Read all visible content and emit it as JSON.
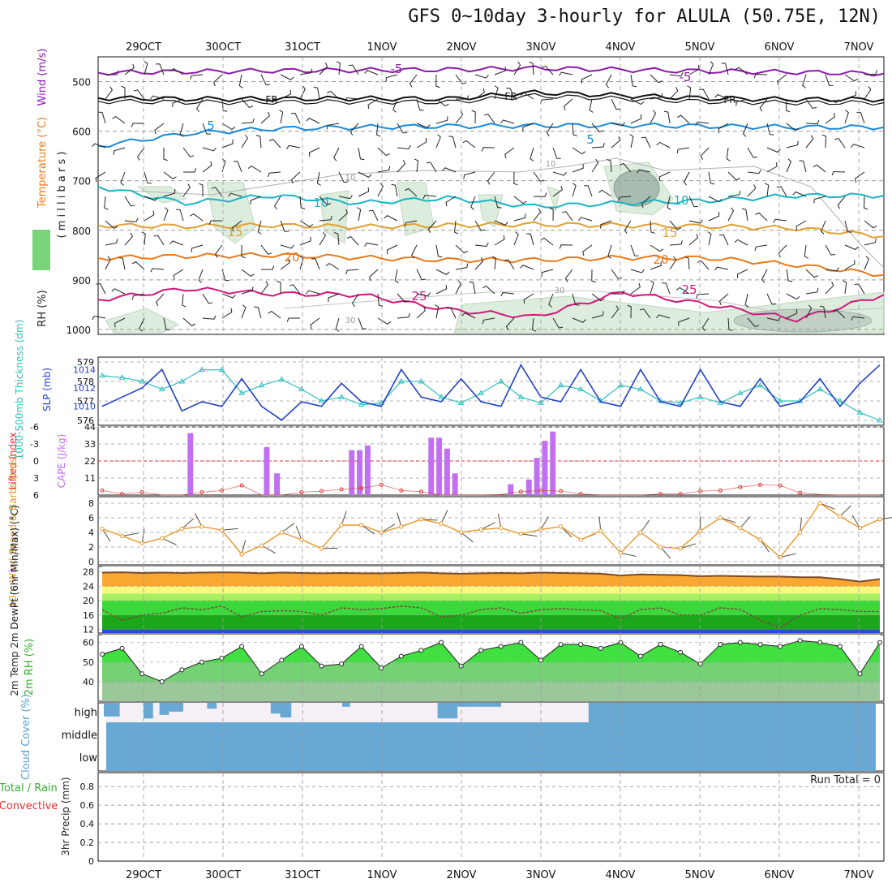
{
  "title": "GFS 0~10day 3-hourly for ALULA (50.75E, 12N)",
  "dates": [
    "29OCT",
    "30OCT",
    "31OCT",
    "1NOV",
    "2NOV",
    "3NOV",
    "4NOV",
    "5NOV",
    "6NOV",
    "7NOV"
  ],
  "colors": {
    "purple": "#8a1aa8",
    "black": "#111111",
    "blue": "#1a8ad8",
    "cyan": "#1ab4c4",
    "gold": "#e0a030",
    "orange": "#e87a1a",
    "magenta": "#d0187a",
    "slp": "#2040c8",
    "thick": "#30c0c0",
    "cape": "#c070f0",
    "li": "#e03030",
    "wind10": "#e8982a",
    "cloud": "#6aa8d4",
    "rhgreen": "#40e040"
  },
  "panels": {
    "upper": {
      "axis_label_wind": "Wind (m/s)",
      "axis_label_temp": "Temperature (°C)",
      "axis_label_rh": "RH (%)",
      "axis_label_mb": "( m i l l i b a r s )",
      "yticks": [
        "500",
        "600",
        "700",
        "800",
        "900",
        "1000"
      ],
      "ylim": [
        450,
        1010
      ],
      "isotherms": [
        {
          "name": "-5",
          "color": "#8a1aa8",
          "p": [
            482,
            480,
            478,
            477,
            476,
            473,
            476,
            479,
            481,
            484
          ]
        },
        {
          "name": "FR",
          "color": "#111111",
          "p": [
            533,
            535,
            535,
            534,
            535,
            522,
            528,
            534,
            536,
            536
          ]
        },
        {
          "name": "-5b",
          "color": "#1a8ad8",
          "p": [
            630,
            605,
            595,
            592,
            590,
            589,
            588,
            590,
            592,
            592
          ]
        },
        {
          "name": "10",
          "color": "#1ab4c4",
          "p": [
            712,
            745,
            730,
            745,
            735,
            752,
            745,
            740,
            730,
            730
          ]
        },
        {
          "name": "15",
          "color": "#e0a030",
          "p": [
            790,
            792,
            790,
            793,
            790,
            788,
            790,
            792,
            796,
            812
          ]
        },
        {
          "name": "20",
          "color": "#e87a1a",
          "p": [
            856,
            852,
            850,
            855,
            860,
            860,
            855,
            856,
            870,
            890
          ]
        },
        {
          "name": "25",
          "color": "#d0187a",
          "p": [
            940,
            918,
            928,
            930,
            960,
            975,
            925,
            950,
            980,
            930
          ]
        }
      ],
      "contour_labels": [
        "-5",
        "-5",
        "FR",
        "FR",
        "FR",
        "5",
        "5",
        "10",
        "10",
        "15",
        "15",
        "20",
        "20",
        "25",
        "25",
        "10",
        "10",
        "30",
        "30"
      ]
    },
    "slp": {
      "axis_label_thick": "1000-500mb Thickness (dm)",
      "axis_label_slp": "SLP (mb)",
      "yticks_left": [
        "576",
        "577",
        "578",
        "579"
      ],
      "yticks_right": [
        "1010",
        "1012",
        "1014"
      ],
      "slp_values": [
        1010,
        1011,
        1012,
        1014,
        1009.5,
        1010.5,
        1010,
        1013,
        1010,
        1008.5,
        1010.5,
        1010,
        1012.5,
        1010.5,
        1010,
        1014,
        1011,
        1010.5,
        1013,
        1010.5,
        1010,
        1014.5,
        1011,
        1010.5,
        1014,
        1010.5,
        1010,
        1014,
        1010.5,
        1010,
        1014,
        1010.5,
        1010,
        1013,
        1010,
        1010.5,
        1013,
        1010,
        1012.5,
        1014.5
      ],
      "thick_values": [
        578.3,
        578.2,
        578.0,
        577.6,
        578.0,
        578.6,
        578.6,
        577.4,
        577.8,
        578.1,
        577.6,
        577.0,
        577.2,
        576.8,
        576.9,
        578.0,
        578.0,
        577.2,
        576.9,
        577.4,
        578.0,
        577.2,
        576.9,
        577.8,
        577.6,
        577.0,
        577.8,
        577.6,
        577.0,
        576.9,
        577.2,
        576.9,
        577.4,
        577.8,
        577.0,
        577.0,
        577.6,
        577.0,
        576.4,
        576.0
      ]
    },
    "cape": {
      "axis_label_li": "Lifted Index",
      "axis_label_cape": "CAPE (J/kg)",
      "yticks_left": [
        "-6",
        "-3",
        "0",
        "3",
        "6"
      ],
      "yticks_right": [
        "11",
        "22",
        "33",
        "44"
      ],
      "cape_bars": [
        {
          "t": 1.09,
          "v": 40
        },
        {
          "t": 2.05,
          "v": 31
        },
        {
          "t": 2.18,
          "v": 14
        },
        {
          "t": 3.12,
          "v": 29
        },
        {
          "t": 3.22,
          "v": 29
        },
        {
          "t": 3.32,
          "v": 32
        },
        {
          "t": 4.12,
          "v": 37
        },
        {
          "t": 4.22,
          "v": 37
        },
        {
          "t": 4.32,
          "v": 30
        },
        {
          "t": 4.42,
          "v": 14
        },
        {
          "t": 5.12,
          "v": 7
        },
        {
          "t": 5.35,
          "v": 10
        },
        {
          "t": 5.45,
          "v": 24
        },
        {
          "t": 5.55,
          "v": 35
        },
        {
          "t": 5.65,
          "v": 41
        }
      ],
      "li_values": [
        5.2,
        5.8,
        5.5,
        6,
        6,
        5.5,
        5.2,
        4.3,
        6,
        6,
        5.5,
        5.3,
        5,
        4.8,
        4.2,
        5.2,
        5.4,
        6,
        6,
        6,
        5.9,
        5.4,
        5.2,
        5.3,
        5.8,
        6,
        6,
        6,
        5.8,
        5.8,
        5.3,
        5.2,
        4.6,
        4.2,
        4.3,
        5.6,
        5.9,
        6,
        6,
        6
      ]
    },
    "wind10": {
      "axis_label": "10m Wind Speed & Barbs (m/s)",
      "yticks": [
        "0",
        "2",
        "4",
        "6",
        "8"
      ],
      "speed": [
        4.5,
        3.5,
        2.5,
        3.2,
        4.5,
        4.8,
        4.3,
        1.0,
        2.2,
        4.0,
        3.0,
        1.8,
        5.0,
        5.0,
        4.0,
        4.8,
        5.8,
        5.2,
        4.0,
        4.4,
        4.6,
        3.8,
        4.4,
        4.8,
        3.0,
        4.2,
        1.2,
        4.0,
        2.0,
        1.8,
        4.2,
        6.0,
        4.6,
        3.0,
        0.6,
        4.0,
        8.0,
        6.2,
        4.6,
        5.8
      ]
    },
    "temp2m": {
      "axis_label": "2m Temp 2m DewPt (6hr Min/Max) (°C)",
      "yticks": [
        "12",
        "16",
        "20",
        "24",
        "28"
      ],
      "temp": [
        27.8,
        27.9,
        27.7,
        27.8,
        27.7,
        27.8,
        27.9,
        27.8,
        27.6,
        27.8,
        27.7,
        27.6,
        27.7,
        27.6,
        27.6,
        27.7,
        27.8,
        27.6,
        27.5,
        27.6,
        27.7,
        27.6,
        27.8,
        27.7,
        27.6,
        27.5,
        27.0,
        27.3,
        27.2,
        27.1,
        26.8,
        26.9,
        26.8,
        26.7,
        26.7,
        26.5,
        26.5,
        26.0,
        25.3,
        26.0
      ],
      "dew": [
        17.5,
        14.5,
        16.0,
        16.5,
        18.0,
        17.5,
        18.5,
        15.5,
        17.0,
        17.2,
        17.0,
        16.0,
        18.0,
        17.5,
        17.8,
        18.5,
        18.0,
        15.5,
        16.0,
        17.5,
        18.0,
        16.5,
        17.5,
        17.8,
        17.5,
        17.2,
        15.0,
        17.5,
        18.0,
        16.0,
        16.0,
        18.0,
        17.6,
        14.5,
        12.5,
        16.0,
        17.8,
        17.5,
        17.0,
        17.0
      ]
    },
    "rh2m": {
      "axis_label": "2m RH (%)",
      "yticks": [
        "40",
        "50",
        "60"
      ],
      "rh": [
        54,
        57,
        44,
        40,
        46,
        50,
        52,
        58,
        44,
        51,
        58,
        48,
        49,
        58,
        47,
        53,
        56,
        60,
        48,
        56,
        58,
        60,
        51,
        59,
        59,
        57,
        60,
        53,
        59,
        55,
        49,
        59,
        60,
        59,
        58,
        61,
        60,
        58,
        44,
        60
      ]
    },
    "cloud": {
      "axis_label": "Cloud Cover (%)",
      "levels": [
        "high",
        "middle",
        "low"
      ],
      "high_gaps": [
        {
          "t0": 0.0,
          "t1": 0.2,
          "d": 0.7
        },
        {
          "t0": 0.5,
          "t1": 0.62,
          "d": 0.8
        },
        {
          "t0": 0.7,
          "t1": 0.82,
          "d": 0.62
        },
        {
          "t0": 0.82,
          "t1": 1.0,
          "d": 0.45
        },
        {
          "t0": 1.3,
          "t1": 1.42,
          "d": 0.3
        },
        {
          "t0": 2.1,
          "t1": 2.22,
          "d": 0.55
        },
        {
          "t0": 2.22,
          "t1": 2.36,
          "d": 0.75
        },
        {
          "t0": 3.0,
          "t1": 3.1,
          "d": 0.2
        },
        {
          "t0": 4.2,
          "t1": 4.45,
          "d": 0.8
        },
        {
          "t0": 4.45,
          "t1": 4.7,
          "d": 0.2
        },
        {
          "t0": 4.7,
          "t1": 5.0,
          "d": 0.2
        }
      ]
    },
    "precip": {
      "axis_label": "3hr Precip (mm)",
      "axis_label_total": "Total / Rain",
      "axis_label_conv": "Convective",
      "yticks": [
        "0",
        "0.2",
        "0.4",
        "0.6",
        "0.8"
      ],
      "run_total": "Run Total = 0"
    }
  }
}
